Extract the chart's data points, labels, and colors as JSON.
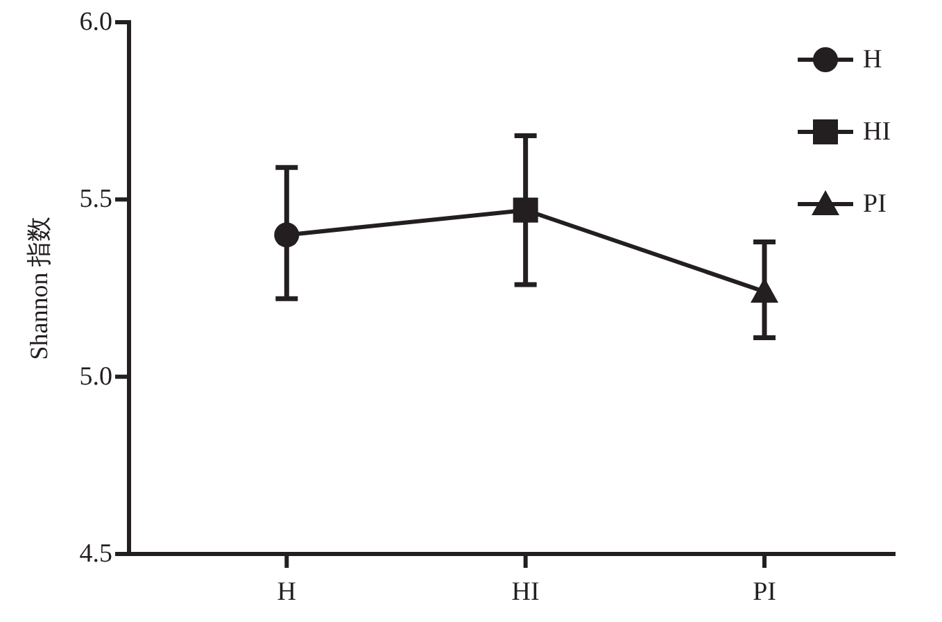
{
  "chart_data": {
    "type": "line",
    "ylabel": "Shannon 指数",
    "categories": [
      "H",
      "HI",
      "PI"
    ],
    "ylim": [
      4.5,
      6.0
    ],
    "yticks": [
      {
        "value": 4.5,
        "label": "4.5"
      },
      {
        "value": 5.0,
        "label": "5.0"
      },
      {
        "value": 5.5,
        "label": "5.5"
      },
      {
        "value": 6.0,
        "label": "6.0"
      }
    ],
    "grid": false,
    "legend": "top right",
    "line_style": "solid",
    "series": [
      {
        "color": "#231f20",
        "marker": "none",
        "values": [
          5.4,
          5.47,
          5.24
        ]
      },
      {
        "name": "H",
        "color": "#231f20",
        "marker": "circle",
        "values": [
          5.4,
          null,
          null
        ],
        "errors": [
          [
            5.22,
            5.59
          ],
          null,
          null
        ]
      },
      {
        "name": "HI",
        "color": "#231f20",
        "marker": "square",
        "values": [
          null,
          5.47,
          null
        ],
        "errors": [
          null,
          [
            5.26,
            5.68
          ],
          null
        ]
      },
      {
        "name": "PI",
        "color": "#231f20",
        "marker": "triangle",
        "values": [
          null,
          null,
          5.24
        ],
        "errors": [
          null,
          null,
          [
            5.11,
            5.38
          ]
        ]
      }
    ]
  }
}
